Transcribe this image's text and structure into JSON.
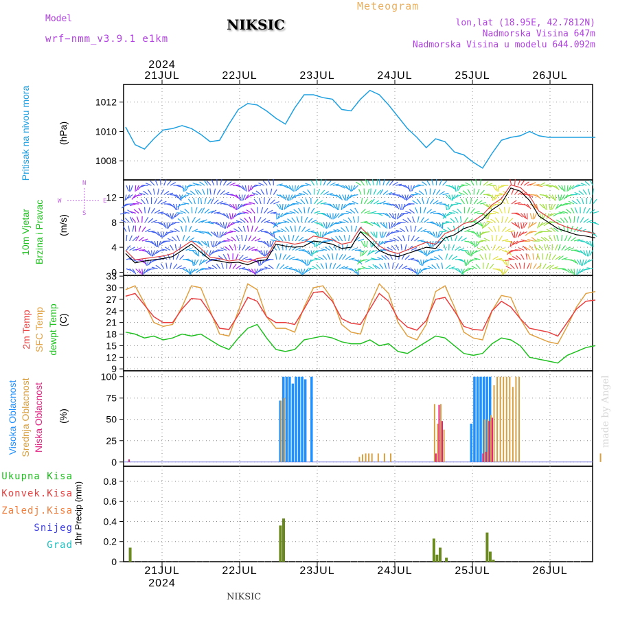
{
  "header": {
    "model_label": "Model",
    "model_name": "wrf−nmm_v3.9.1  e1km",
    "station": "NIKSIC",
    "product": "Meteogram",
    "coords": "lon,lat (18.95E, 42.7812N)",
    "elevation": "Nadmorska Visina 647m",
    "model_elevation": "Nadmorska Visina u modelu 644.092m"
  },
  "time_axis": {
    "year": "2024",
    "days": [
      "21JUL",
      "22JUL",
      "23JUL",
      "24JUL",
      "25JUL",
      "26JUL"
    ]
  },
  "panel_labels": {
    "pressure": {
      "title": "Pritisak na nivou mora",
      "unit": "(hPa)"
    },
    "wind": {
      "title1": "10m Vjetar",
      "title2": "Brzina i Pravac",
      "unit": "(m/s)",
      "compass_n": "N",
      "compass_s": "S",
      "compass_w": "W",
      "compass_e": "E"
    },
    "temp": {
      "t2m": "2m Temp",
      "sfc": "SFC Temp",
      "dew": "dewpt Temp",
      "unit": "(C)"
    },
    "cloud": {
      "high": "Visoka Oblacnost",
      "mid": "Srednja Oblacnost",
      "low": "Niska Oblacnost",
      "unit": "(%)"
    },
    "precip": {
      "total": "Ukupna Kisa",
      "conv": "Konvek.Kisa",
      "frozen": "Zaledj.Kisa",
      "snow": "Snijeg",
      "hail": "Grad",
      "unit": "1hr Precip (mm)"
    }
  },
  "footer": {
    "station": "NIKSIC",
    "credit": "made by Angel"
  },
  "colors": {
    "pressure": "#1ea0e0",
    "t2m": "#e84040",
    "sfc": "#e0a040",
    "dew": "#20c020",
    "high": "#1e90ff",
    "mid": "#d8a040",
    "low": "#e02080",
    "precip": "#6a8a20"
  },
  "chart_data": [
    {
      "type": "line",
      "name": "Pritisak na nivou mora",
      "ylabel": "(hPa)",
      "ylim": [
        1006.7,
        1013.2
      ],
      "yticks": [
        1008,
        1010,
        1012
      ],
      "x_hours": [
        0,
        3,
        6,
        9,
        12,
        15,
        18,
        21,
        24,
        27,
        30,
        33,
        36,
        39,
        42,
        45,
        48,
        51,
        54,
        57,
        60,
        63,
        66,
        69,
        72,
        75,
        78,
        81,
        84,
        87,
        90,
        93,
        96,
        99,
        102,
        105,
        108,
        111,
        114,
        117,
        120,
        123,
        126,
        129,
        132,
        135,
        138,
        141,
        144,
        147,
        150
      ],
      "series": [
        {
          "name": "Pritisak na nivou mora",
          "values": [
            1010.3,
            1009.1,
            1008.8,
            1009.5,
            1010.1,
            1010.2,
            1010.4,
            1010.2,
            1009.8,
            1009.3,
            1009.4,
            1010.5,
            1011.5,
            1011.9,
            1011.8,
            1011.4,
            1010.9,
            1010.5,
            1011.6,
            1012.5,
            1012.5,
            1012.3,
            1012.2,
            1011.5,
            1011.4,
            1012.2,
            1012.8,
            1012.5,
            1011.8,
            1011.0,
            1010.2,
            1009.6,
            1008.9,
            1009.5,
            1009.3,
            1008.6,
            1008.4,
            1007.9,
            1007.5,
            1008.5,
            1009.4,
            1009.6,
            1009.7,
            1010.0,
            1009.7,
            1009.6,
            1009.6,
            1009.6,
            1009.6,
            1009.6,
            1009.6
          ]
        }
      ]
    },
    {
      "type": "line",
      "name": "10m Vjetar Brzina i Pravac",
      "ylabel": "(m/s)",
      "ylim": [
        -0.5,
        14.8
      ],
      "yticks": [
        0,
        4,
        8,
        12
      ],
      "x_hours": [
        0,
        3,
        6,
        9,
        12,
        15,
        18,
        21,
        24,
        27,
        30,
        33,
        36,
        39,
        42,
        45,
        48,
        51,
        54,
        57,
        60,
        63,
        66,
        69,
        72,
        75,
        78,
        81,
        84,
        87,
        90,
        93,
        96,
        99,
        102,
        105,
        108,
        111,
        114,
        117,
        120,
        123,
        126,
        129,
        132,
        135,
        138,
        141,
        144,
        147,
        150
      ],
      "series": [
        {
          "name": "wind speed",
          "values": [
            3.0,
            1.5,
            1.8,
            2.0,
            2.2,
            2.5,
            3.5,
            4.5,
            3.2,
            2.0,
            1.8,
            1.5,
            1.6,
            1.2,
            1.8,
            2.0,
            4.5,
            4.2,
            4.0,
            4.2,
            5.0,
            4.8,
            4.5,
            3.8,
            4.0,
            6.5,
            5.0,
            3.5,
            2.8,
            2.5,
            3.0,
            3.5,
            4.0,
            3.8,
            5.5,
            6.0,
            7.0,
            7.5,
            8.5,
            10.0,
            11.0,
            13.5,
            13.0,
            11.5,
            9.0,
            8.0,
            7.0,
            6.5,
            6.0,
            5.8,
            5.5
          ]
        },
        {
          "name": "wind gust",
          "values": [
            3.5,
            2.0,
            2.2,
            2.4,
            2.6,
            3.0,
            4.0,
            5.0,
            3.8,
            2.4,
            2.2,
            1.8,
            2.0,
            1.6,
            2.2,
            2.4,
            5.0,
            4.8,
            4.5,
            4.8,
            5.8,
            5.5,
            5.2,
            4.5,
            4.8,
            7.2,
            5.8,
            4.2,
            3.4,
            3.0,
            3.6,
            4.2,
            4.8,
            4.5,
            6.2,
            6.8,
            7.8,
            8.2,
            9.2,
            10.8,
            11.8,
            14.0,
            13.6,
            12.2,
            9.8,
            8.8,
            7.8,
            7.2,
            6.8,
            6.5,
            6.2
          ]
        }
      ]
    },
    {
      "type": "line",
      "name": "Temperature",
      "ylabel": "(C)",
      "ylim": [
        8.5,
        33.2
      ],
      "yticks": [
        9,
        12,
        15,
        18,
        21,
        24,
        27,
        30,
        33
      ],
      "x_hours": [
        0,
        3,
        6,
        9,
        12,
        15,
        18,
        21,
        24,
        27,
        30,
        33,
        36,
        39,
        42,
        45,
        48,
        51,
        54,
        57,
        60,
        63,
        66,
        69,
        72,
        75,
        78,
        81,
        84,
        87,
        90,
        93,
        96,
        99,
        102,
        105,
        108,
        111,
        114,
        117,
        120,
        123,
        126,
        129,
        132,
        135,
        138,
        141,
        144,
        147,
        150
      ],
      "series": [
        {
          "name": "2m Temp",
          "values": [
            27.8,
            28.5,
            25.5,
            22.5,
            21.0,
            21.0,
            24.5,
            27.2,
            27.0,
            23.5,
            19.5,
            19.2,
            23.0,
            27.5,
            26.5,
            22.5,
            21.0,
            21.0,
            20.5,
            24.5,
            28.8,
            29.0,
            26.5,
            22.0,
            20.8,
            20.5,
            24.5,
            28.5,
            26.5,
            22.0,
            19.8,
            19.0,
            21.5,
            27.0,
            27.5,
            24.0,
            20.0,
            19.2,
            19.0,
            24.0,
            26.5,
            25.0,
            22.0,
            19.5,
            19.0,
            18.5,
            17.5,
            21.0,
            24.5,
            26.5,
            26.8
          ]
        },
        {
          "name": "SFC Temp",
          "values": [
            29.5,
            30.5,
            26.0,
            21.0,
            20.0,
            20.5,
            25.0,
            30.5,
            30.0,
            24.0,
            18.0,
            17.5,
            24.0,
            31.0,
            29.5,
            22.5,
            19.5,
            19.5,
            18.5,
            25.0,
            30.0,
            30.5,
            27.0,
            20.5,
            18.5,
            18.0,
            25.5,
            31.0,
            28.5,
            21.0,
            17.5,
            16.5,
            20.5,
            29.0,
            30.5,
            25.0,
            18.5,
            17.0,
            16.5,
            24.0,
            28.0,
            27.5,
            22.0,
            18.0,
            17.0,
            16.0,
            15.5,
            20.0,
            25.0,
            28.5,
            29.0
          ]
        },
        {
          "name": "dewpt Temp",
          "values": [
            18.5,
            18.0,
            17.0,
            17.5,
            16.5,
            17.0,
            18.0,
            17.5,
            18.0,
            16.5,
            15.0,
            14.0,
            17.0,
            19.5,
            20.5,
            17.0,
            14.0,
            13.5,
            14.0,
            16.5,
            17.0,
            17.5,
            17.0,
            16.0,
            15.5,
            15.5,
            16.5,
            15.0,
            15.5,
            13.5,
            13.0,
            14.5,
            16.0,
            17.5,
            17.0,
            15.0,
            13.0,
            12.5,
            13.0,
            15.5,
            17.0,
            16.5,
            15.0,
            12.0,
            11.5,
            11.0,
            10.5,
            12.5,
            13.5,
            14.5,
            15.0
          ]
        }
      ]
    },
    {
      "type": "bar",
      "name": "Oblacnost",
      "ylabel": "(%)",
      "ylim": [
        -5,
        107
      ],
      "yticks": [
        0,
        25,
        50,
        75,
        100
      ],
      "series": [
        {
          "name": "Visoka Oblacnost",
          "x_hours": [
            49,
            50,
            51,
            52,
            53,
            54,
            55,
            56,
            57,
            59,
            110,
            111,
            112,
            113,
            114,
            115,
            116
          ],
          "values": [
            72,
            100,
            100,
            100,
            92,
            100,
            100,
            100,
            97,
            100,
            45,
            100,
            100,
            100,
            100,
            100,
            100
          ]
        },
        {
          "name": "Srednja Oblacnost",
          "x_hours": [
            49,
            50,
            74,
            75,
            76,
            77,
            78,
            80,
            82,
            84,
            98,
            99,
            100,
            101,
            114,
            115,
            116,
            117,
            118,
            119,
            120,
            121,
            122,
            123,
            124,
            125,
            151
          ],
          "values": [
            72,
            75,
            6,
            9,
            10,
            10,
            10,
            10,
            10,
            10,
            68,
            45,
            68,
            38,
            50,
            50,
            55,
            90,
            100,
            100,
            100,
            100,
            100,
            88,
            100,
            100,
            10
          ]
        },
        {
          "name": "Niska Oblacnost",
          "x_hours": [
            0,
            98,
            99,
            100,
            113,
            114,
            115,
            116
          ],
          "values": [
            3,
            10,
            67,
            48,
            10,
            12,
            48,
            52
          ]
        }
      ]
    },
    {
      "type": "bar",
      "name": "1hr Precip",
      "ylabel": "1hr Precip (mm)",
      "ylim": [
        0,
        0.95
      ],
      "yticks": [
        0,
        0.2,
        0.4,
        0.6,
        0.8
      ],
      "series": [
        {
          "name": "Ukupna Kisa",
          "x_hours": [
            1,
            49,
            50,
            98,
            99,
            100,
            102,
            115,
            116,
            117
          ],
          "values": [
            0.14,
            0.36,
            0.43,
            0.23,
            0.07,
            0.14,
            0.04,
            0.29,
            0.1,
            0.02
          ]
        }
      ]
    }
  ]
}
